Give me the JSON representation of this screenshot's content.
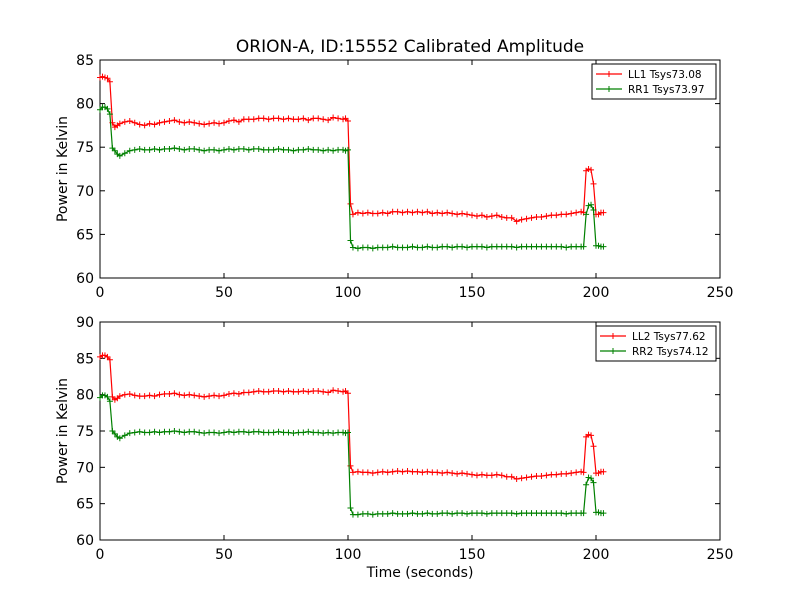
{
  "title": "ORION-A, ID:15552 Calibrated Amplitude",
  "chart_data": [
    {
      "type": "line",
      "ylabel": "Power in Kelvin",
      "xlabel": "",
      "xlim": [
        0,
        250
      ],
      "ylim": [
        60,
        85
      ],
      "xticks": [
        0,
        50,
        100,
        150,
        200,
        250
      ],
      "yticks": [
        60,
        65,
        70,
        75,
        80,
        85
      ],
      "legend_position": "top-right",
      "grid": false,
      "series": [
        {
          "name": "LL1 Tsys73.08",
          "color": "#ff0000",
          "x": [
            0,
            1,
            2,
            3,
            4,
            5,
            6,
            7,
            8,
            10,
            12,
            14,
            16,
            18,
            20,
            22,
            24,
            26,
            28,
            30,
            32,
            34,
            36,
            38,
            40,
            42,
            44,
            46,
            48,
            50,
            52,
            54,
            56,
            58,
            60,
            62,
            64,
            66,
            68,
            70,
            72,
            74,
            76,
            78,
            80,
            82,
            84,
            86,
            88,
            90,
            92,
            94,
            96,
            98,
            99,
            100,
            101,
            102,
            104,
            106,
            108,
            110,
            112,
            114,
            116,
            118,
            120,
            122,
            124,
            126,
            128,
            130,
            132,
            134,
            136,
            138,
            140,
            142,
            144,
            146,
            148,
            150,
            152,
            154,
            156,
            158,
            160,
            162,
            164,
            166,
            168,
            170,
            172,
            174,
            176,
            178,
            180,
            182,
            184,
            186,
            188,
            190,
            192,
            194,
            195,
            196,
            197,
            198,
            199,
            200,
            201,
            202,
            203
          ],
          "y": [
            83.0,
            83.1,
            83.0,
            82.9,
            82.5,
            77.8,
            77.3,
            77.5,
            77.7,
            77.9,
            78.0,
            77.8,
            77.6,
            77.5,
            77.7,
            77.6,
            77.8,
            77.9,
            78.0,
            78.1,
            77.9,
            77.8,
            77.9,
            77.8,
            77.7,
            77.6,
            77.7,
            77.8,
            77.7,
            77.8,
            78.0,
            78.1,
            77.9,
            78.2,
            78.2,
            78.2,
            78.3,
            78.3,
            78.2,
            78.3,
            78.3,
            78.2,
            78.3,
            78.2,
            78.2,
            78.3,
            78.1,
            78.3,
            78.3,
            78.2,
            78.1,
            78.4,
            78.3,
            78.2,
            78.3,
            78.0,
            68.5,
            67.3,
            67.5,
            67.4,
            67.5,
            67.4,
            67.4,
            67.5,
            67.4,
            67.6,
            67.6,
            67.5,
            67.6,
            67.5,
            67.6,
            67.5,
            67.6,
            67.4,
            67.5,
            67.4,
            67.5,
            67.4,
            67.3,
            67.4,
            67.3,
            67.2,
            67.1,
            67.2,
            67.0,
            67.1,
            67.2,
            67.0,
            66.9,
            66.9,
            66.5,
            66.7,
            66.8,
            66.9,
            67.0,
            67.0,
            67.1,
            67.2,
            67.2,
            67.3,
            67.3,
            67.4,
            67.5,
            67.6,
            67.5,
            72.3,
            72.5,
            72.4,
            70.8,
            67.3,
            67.3,
            67.5,
            67.5
          ],
          "marker": "+"
        },
        {
          "name": "RR1 Tsys73.97",
          "color": "#008000",
          "x": [
            0,
            1,
            2,
            3,
            4,
            5,
            6,
            7,
            8,
            10,
            12,
            14,
            16,
            18,
            20,
            22,
            24,
            26,
            28,
            30,
            32,
            34,
            36,
            38,
            40,
            42,
            44,
            46,
            48,
            50,
            52,
            54,
            56,
            58,
            60,
            62,
            64,
            66,
            68,
            70,
            72,
            74,
            76,
            78,
            80,
            82,
            84,
            86,
            88,
            90,
            92,
            94,
            96,
            98,
            99,
            100,
            101,
            102,
            104,
            106,
            108,
            110,
            112,
            114,
            116,
            118,
            120,
            122,
            124,
            126,
            128,
            130,
            132,
            134,
            136,
            138,
            140,
            142,
            144,
            146,
            148,
            150,
            152,
            154,
            156,
            158,
            160,
            162,
            164,
            166,
            168,
            170,
            172,
            174,
            176,
            178,
            180,
            182,
            184,
            186,
            188,
            190,
            192,
            194,
            195,
            196,
            197,
            198,
            199,
            200,
            201,
            202,
            203
          ],
          "y": [
            79.3,
            79.6,
            79.6,
            79.4,
            78.8,
            74.9,
            74.6,
            74.2,
            74.0,
            74.3,
            74.6,
            74.7,
            74.8,
            74.7,
            74.7,
            74.8,
            74.7,
            74.8,
            74.8,
            74.9,
            74.8,
            74.7,
            74.8,
            74.8,
            74.7,
            74.6,
            74.7,
            74.7,
            74.6,
            74.7,
            74.8,
            74.7,
            74.8,
            74.8,
            74.7,
            74.8,
            74.8,
            74.7,
            74.7,
            74.7,
            74.8,
            74.7,
            74.7,
            74.6,
            74.7,
            74.7,
            74.8,
            74.7,
            74.7,
            74.6,
            74.7,
            74.6,
            74.7,
            74.7,
            74.6,
            74.7,
            64.3,
            63.5,
            63.4,
            63.5,
            63.5,
            63.4,
            63.5,
            63.5,
            63.5,
            63.6,
            63.5,
            63.5,
            63.5,
            63.6,
            63.5,
            63.5,
            63.6,
            63.5,
            63.5,
            63.6,
            63.6,
            63.5,
            63.6,
            63.6,
            63.5,
            63.6,
            63.6,
            63.6,
            63.5,
            63.6,
            63.6,
            63.6,
            63.6,
            63.6,
            63.5,
            63.6,
            63.6,
            63.6,
            63.6,
            63.6,
            63.6,
            63.6,
            63.6,
            63.6,
            63.5,
            63.6,
            63.6,
            63.6,
            63.6,
            67.3,
            68.3,
            68.4,
            67.8,
            63.7,
            63.7,
            63.6,
            63.6
          ],
          "marker": "+"
        }
      ]
    },
    {
      "type": "line",
      "ylabel": "Power in Kelvin",
      "xlabel": "Time (seconds)",
      "xlim": [
        0,
        250
      ],
      "ylim": [
        60,
        90
      ],
      "xticks": [
        0,
        50,
        100,
        150,
        200,
        250
      ],
      "yticks": [
        60,
        65,
        70,
        75,
        80,
        85,
        90
      ],
      "legend_position": "top-right",
      "grid": false,
      "series": [
        {
          "name": "LL2 Tsys77.62",
          "color": "#ff0000",
          "x": [
            0,
            1,
            2,
            3,
            4,
            5,
            6,
            7,
            8,
            10,
            12,
            14,
            16,
            18,
            20,
            22,
            24,
            26,
            28,
            30,
            32,
            34,
            36,
            38,
            40,
            42,
            44,
            46,
            48,
            50,
            52,
            54,
            56,
            58,
            60,
            62,
            64,
            66,
            68,
            70,
            72,
            74,
            76,
            78,
            80,
            82,
            84,
            86,
            88,
            90,
            92,
            94,
            96,
            98,
            99,
            100,
            101,
            102,
            104,
            106,
            108,
            110,
            112,
            114,
            116,
            118,
            120,
            122,
            124,
            126,
            128,
            130,
            132,
            134,
            136,
            138,
            140,
            142,
            144,
            146,
            148,
            150,
            152,
            154,
            156,
            158,
            160,
            162,
            164,
            166,
            168,
            170,
            172,
            174,
            176,
            178,
            180,
            182,
            184,
            186,
            188,
            190,
            192,
            194,
            195,
            196,
            197,
            198,
            199,
            200,
            201,
            202,
            203
          ],
          "y": [
            85.2,
            85.4,
            85.4,
            85.2,
            84.8,
            79.7,
            79.3,
            79.5,
            79.8,
            80.0,
            80.1,
            79.9,
            79.8,
            79.8,
            79.9,
            79.8,
            80.0,
            80.1,
            80.1,
            80.2,
            80.0,
            79.9,
            80.0,
            79.9,
            79.8,
            79.7,
            79.8,
            79.9,
            79.8,
            79.9,
            80.1,
            80.2,
            80.1,
            80.3,
            80.3,
            80.4,
            80.5,
            80.4,
            80.4,
            80.5,
            80.5,
            80.4,
            80.5,
            80.4,
            80.4,
            80.5,
            80.4,
            80.5,
            80.5,
            80.4,
            80.3,
            80.6,
            80.5,
            80.4,
            80.5,
            80.2,
            70.2,
            69.3,
            69.4,
            69.3,
            69.3,
            69.2,
            69.3,
            69.4,
            69.3,
            69.4,
            69.5,
            69.4,
            69.5,
            69.4,
            69.4,
            69.3,
            69.4,
            69.3,
            69.3,
            69.2,
            69.3,
            69.2,
            69.1,
            69.2,
            69.1,
            69.0,
            68.9,
            69.0,
            68.9,
            68.9,
            69.0,
            68.9,
            68.7,
            68.7,
            68.4,
            68.5,
            68.6,
            68.7,
            68.8,
            68.8,
            68.9,
            69.0,
            69.0,
            69.1,
            69.1,
            69.2,
            69.3,
            69.4,
            69.3,
            74.2,
            74.5,
            74.4,
            72.9,
            69.2,
            69.2,
            69.4,
            69.4
          ],
          "marker": "+"
        },
        {
          "name": "RR2 Tsys74.12",
          "color": "#008000",
          "x": [
            0,
            1,
            2,
            3,
            4,
            5,
            6,
            7,
            8,
            10,
            12,
            14,
            16,
            18,
            20,
            22,
            24,
            26,
            28,
            30,
            32,
            34,
            36,
            38,
            40,
            42,
            44,
            46,
            48,
            50,
            52,
            54,
            56,
            58,
            60,
            62,
            64,
            66,
            68,
            70,
            72,
            74,
            76,
            78,
            80,
            82,
            84,
            86,
            88,
            90,
            92,
            94,
            96,
            98,
            99,
            100,
            101,
            102,
            104,
            106,
            108,
            110,
            112,
            114,
            116,
            118,
            120,
            122,
            124,
            126,
            128,
            130,
            132,
            134,
            136,
            138,
            140,
            142,
            144,
            146,
            148,
            150,
            152,
            154,
            156,
            158,
            160,
            162,
            164,
            166,
            168,
            170,
            172,
            174,
            176,
            178,
            180,
            182,
            184,
            186,
            188,
            190,
            192,
            194,
            195,
            196,
            197,
            198,
            199,
            200,
            201,
            202,
            203
          ],
          "y": [
            79.6,
            79.9,
            79.9,
            79.7,
            79.1,
            75.0,
            74.6,
            74.2,
            74.0,
            74.4,
            74.7,
            74.8,
            74.9,
            74.8,
            74.8,
            74.9,
            74.8,
            74.9,
            74.9,
            75.0,
            74.9,
            74.8,
            74.9,
            74.9,
            74.8,
            74.7,
            74.8,
            74.8,
            74.7,
            74.8,
            74.9,
            74.8,
            74.9,
            74.9,
            74.8,
            74.9,
            74.9,
            74.8,
            74.8,
            74.8,
            74.9,
            74.8,
            74.8,
            74.7,
            74.8,
            74.8,
            74.9,
            74.8,
            74.8,
            74.7,
            74.8,
            74.7,
            74.8,
            74.8,
            74.7,
            74.8,
            64.4,
            63.5,
            63.5,
            63.6,
            63.6,
            63.5,
            63.6,
            63.6,
            63.6,
            63.7,
            63.6,
            63.6,
            63.6,
            63.7,
            63.6,
            63.6,
            63.7,
            63.6,
            63.6,
            63.7,
            63.7,
            63.6,
            63.7,
            63.7,
            63.6,
            63.7,
            63.7,
            63.7,
            63.6,
            63.7,
            63.7,
            63.7,
            63.7,
            63.7,
            63.6,
            63.7,
            63.7,
            63.7,
            63.7,
            63.7,
            63.7,
            63.7,
            63.7,
            63.7,
            63.6,
            63.7,
            63.7,
            63.7,
            63.7,
            67.6,
            68.6,
            68.5,
            67.9,
            63.8,
            63.8,
            63.7,
            63.7
          ],
          "marker": "+"
        }
      ]
    }
  ]
}
